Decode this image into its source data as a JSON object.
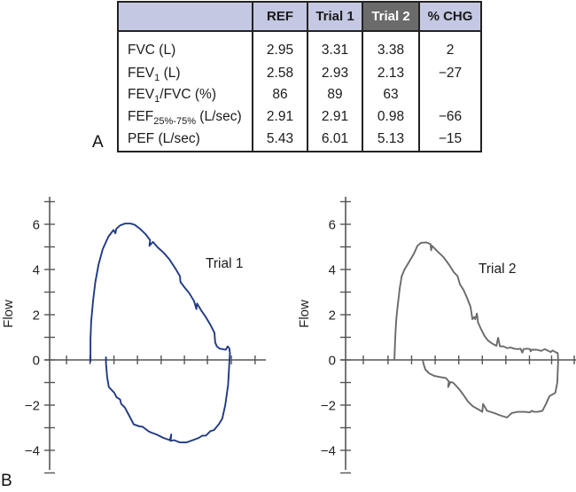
{
  "panels": {
    "a_label": "A",
    "b_label": "B"
  },
  "table": {
    "headers": [
      "",
      "REF",
      "Trial 1",
      "Trial 2",
      "% CHG"
    ],
    "highlight_header_index": 3,
    "header_bg": "#c4c8e2",
    "highlight_bg": "#6b6b6b",
    "rows": [
      {
        "label": "FVC (L)",
        "label_main": "FVC (L)",
        "sub": "",
        "label_rest": "",
        "values": [
          "2.95",
          "3.31",
          "3.38",
          "2"
        ]
      },
      {
        "label": "FEV1 (L)",
        "label_main": "FEV",
        "sub": "1",
        "label_rest": " (L)",
        "values": [
          "2.58",
          "2.93",
          "2.13",
          "−27"
        ]
      },
      {
        "label": "FEV1/FVC (%)",
        "label_main": "FEV",
        "sub": "1",
        "label_rest": "/FVC (%)",
        "values": [
          "86",
          "89",
          "63",
          ""
        ]
      },
      {
        "label": "FEF25%-75% (L/sec)",
        "label_main": "FEF",
        "sub": "25%-75%",
        "label_rest": " (L/sec)",
        "values": [
          "2.91",
          "2.91",
          "0.98",
          "−66"
        ]
      },
      {
        "label": "PEF (L/sec)",
        "label_main": "PEF (L/sec)",
        "sub": "",
        "label_rest": "",
        "values": [
          "5.43",
          "6.01",
          "5.13",
          "−15"
        ]
      }
    ]
  },
  "chart_data": [
    {
      "type": "line",
      "title": "",
      "series_label": "Trial 1",
      "xlabel": "",
      "ylabel": "Flow",
      "ylim": [
        -5,
        7.2
      ],
      "yticks_labeled": [
        6,
        4,
        2,
        0,
        -2,
        -4
      ],
      "yticks_minor": [
        7,
        5,
        3,
        1,
        -1,
        -3,
        -5
      ],
      "xticks": [
        0.72,
        1.72,
        2.74,
        3.74,
        4.75,
        5.74,
        6.72,
        7.74,
        8.75
      ],
      "xlim": [
        0,
        9.2
      ],
      "color": "#1f3a84",
      "points": [
        [
          1.74,
          -0.1
        ],
        [
          1.74,
          0.9
        ],
        [
          1.77,
          1.7
        ],
        [
          1.85,
          2.6
        ],
        [
          1.94,
          3.4
        ],
        [
          2.08,
          4.2
        ],
        [
          2.26,
          4.9
        ],
        [
          2.5,
          5.45
        ],
        [
          2.72,
          5.75
        ],
        [
          2.8,
          5.6
        ],
        [
          2.84,
          5.8
        ],
        [
          3.0,
          5.95
        ],
        [
          3.2,
          6.03
        ],
        [
          3.45,
          6.03
        ],
        [
          3.62,
          5.98
        ],
        [
          3.85,
          5.8
        ],
        [
          4.1,
          5.55
        ],
        [
          4.28,
          5.3
        ],
        [
          4.25,
          5.05
        ],
        [
          4.4,
          5.22
        ],
        [
          4.6,
          4.98
        ],
        [
          4.85,
          4.75
        ],
        [
          5.1,
          4.45
        ],
        [
          5.35,
          4.05
        ],
        [
          5.55,
          3.7
        ],
        [
          5.57,
          3.45
        ],
        [
          5.75,
          3.2
        ],
        [
          5.95,
          2.95
        ],
        [
          6.15,
          2.6
        ],
        [
          6.25,
          2.25
        ],
        [
          6.28,
          2.5
        ],
        [
          6.45,
          2.2
        ],
        [
          6.65,
          1.9
        ],
        [
          6.85,
          1.55
        ],
        [
          7.02,
          1.2
        ],
        [
          7.05,
          0.78
        ],
        [
          7.12,
          0.6
        ],
        [
          7.18,
          0.55
        ],
        [
          7.25,
          0.5
        ],
        [
          7.5,
          0.45
        ],
        [
          7.58,
          0.6
        ],
        [
          7.65,
          0.52
        ],
        [
          7.68,
          0.3
        ],
        [
          7.66,
          0.0
        ],
        [
          7.6,
          -1.1
        ],
        [
          7.48,
          -2.0
        ],
        [
          7.35,
          -2.6
        ],
        [
          7.2,
          -2.85
        ],
        [
          7.0,
          -3.1
        ],
        [
          6.85,
          -3.15
        ],
        [
          6.65,
          -3.35
        ],
        [
          6.5,
          -3.35
        ],
        [
          6.35,
          -3.45
        ],
        [
          6.1,
          -3.55
        ],
        [
          5.82,
          -3.65
        ],
        [
          5.55,
          -3.65
        ],
        [
          5.3,
          -3.55
        ],
        [
          5.15,
          -3.58
        ],
        [
          5.18,
          -3.3
        ],
        [
          5.12,
          -3.55
        ],
        [
          4.85,
          -3.45
        ],
        [
          4.55,
          -3.3
        ],
        [
          4.3,
          -3.2
        ],
        [
          4.2,
          -3.15
        ],
        [
          3.95,
          -2.95
        ],
        [
          3.85,
          -2.95
        ],
        [
          3.58,
          -2.85
        ],
        [
          3.38,
          -2.45
        ],
        [
          3.2,
          -2.1
        ],
        [
          3.05,
          -1.95
        ],
        [
          3.0,
          -1.75
        ],
        [
          2.85,
          -1.65
        ],
        [
          2.75,
          -1.45
        ],
        [
          2.52,
          -1.2
        ],
        [
          2.45,
          -0.75
        ],
        [
          2.4,
          -0.15
        ],
        [
          2.4,
          0.15
        ]
      ]
    },
    {
      "type": "line",
      "title": "",
      "series_label": "Trial 2",
      "xlabel": "",
      "ylabel": "Flow",
      "ylim": [
        -5,
        7.2
      ],
      "yticks_labeled": [
        6,
        4,
        2,
        0,
        -2,
        -4
      ],
      "yticks_minor": [
        7,
        5,
        3,
        1,
        -1,
        -3,
        -5
      ],
      "xticks": [
        0.75,
        1.8,
        2.8,
        3.8,
        4.8,
        5.8,
        6.8,
        7.8,
        8.74,
        9.7
      ],
      "xlim": [
        0,
        9.7
      ],
      "color": "#6a6a6a",
      "points": [
        [
          2.07,
          0.0
        ],
        [
          2.1,
          0.9
        ],
        [
          2.15,
          1.8
        ],
        [
          2.2,
          2.3
        ],
        [
          2.3,
          3.2
        ],
        [
          2.38,
          3.7
        ],
        [
          2.5,
          4.0
        ],
        [
          2.7,
          4.35
        ],
        [
          2.9,
          4.7
        ],
        [
          3.05,
          5.05
        ],
        [
          3.2,
          5.18
        ],
        [
          3.42,
          5.2
        ],
        [
          3.6,
          5.12
        ],
        [
          3.63,
          4.85
        ],
        [
          3.66,
          5.05
        ],
        [
          3.9,
          4.8
        ],
        [
          4.15,
          4.55
        ],
        [
          4.4,
          4.2
        ],
        [
          4.58,
          3.9
        ],
        [
          4.75,
          3.7
        ],
        [
          4.85,
          3.35
        ],
        [
          5.0,
          3.1
        ],
        [
          5.15,
          2.75
        ],
        [
          5.3,
          2.35
        ],
        [
          5.38,
          1.8
        ],
        [
          5.45,
          1.9
        ],
        [
          5.5,
          1.8
        ],
        [
          5.57,
          2.05
        ],
        [
          5.62,
          1.65
        ],
        [
          5.75,
          1.35
        ],
        [
          5.9,
          1.05
        ],
        [
          6.05,
          0.85
        ],
        [
          6.25,
          0.7
        ],
        [
          6.4,
          0.62
        ],
        [
          6.47,
          0.98
        ],
        [
          6.55,
          0.6
        ],
        [
          6.7,
          0.6
        ],
        [
          6.85,
          0.52
        ],
        [
          7.0,
          0.55
        ],
        [
          7.15,
          0.5
        ],
        [
          7.3,
          0.48
        ],
        [
          7.42,
          0.5
        ],
        [
          7.5,
          0.32
        ],
        [
          7.55,
          0.48
        ],
        [
          7.7,
          0.5
        ],
        [
          7.82,
          0.48
        ],
        [
          7.85,
          0.38
        ],
        [
          7.9,
          0.45
        ],
        [
          8.1,
          0.45
        ],
        [
          8.3,
          0.4
        ],
        [
          8.45,
          0.48
        ],
        [
          8.6,
          0.4
        ],
        [
          8.7,
          0.35
        ],
        [
          8.78,
          0.42
        ],
        [
          8.9,
          0.35
        ],
        [
          9.0,
          0.3
        ],
        [
          9.02,
          0.0
        ],
        [
          8.98,
          -1.0
        ],
        [
          8.9,
          -1.45
        ],
        [
          8.82,
          -1.5
        ],
        [
          8.65,
          -1.6
        ],
        [
          8.5,
          -1.95
        ],
        [
          8.35,
          -2.25
        ],
        [
          8.15,
          -2.3
        ],
        [
          8.0,
          -2.3
        ],
        [
          7.9,
          -2.25
        ],
        [
          7.82,
          -2.32
        ],
        [
          7.6,
          -2.3
        ],
        [
          7.3,
          -2.3
        ],
        [
          7.05,
          -2.35
        ],
        [
          6.85,
          -2.55
        ],
        [
          6.55,
          -2.45
        ],
        [
          6.3,
          -2.35
        ],
        [
          6.0,
          -2.25
        ],
        [
          5.83,
          -1.95
        ],
        [
          5.8,
          -2.3
        ],
        [
          5.65,
          -2.2
        ],
        [
          5.4,
          -2.05
        ],
        [
          5.2,
          -1.85
        ],
        [
          5.0,
          -1.55
        ],
        [
          4.82,
          -1.3
        ],
        [
          4.65,
          -1.1
        ],
        [
          4.55,
          -1.0
        ],
        [
          4.45,
          -0.98
        ],
        [
          4.35,
          -1.2
        ],
        [
          4.38,
          -0.95
        ],
        [
          4.25,
          -0.8
        ],
        [
          3.95,
          -0.75
        ],
        [
          3.75,
          -0.7
        ],
        [
          3.55,
          -0.6
        ],
        [
          3.38,
          -0.42
        ],
        [
          3.3,
          -0.15
        ],
        [
          3.28,
          0.0
        ]
      ]
    }
  ]
}
